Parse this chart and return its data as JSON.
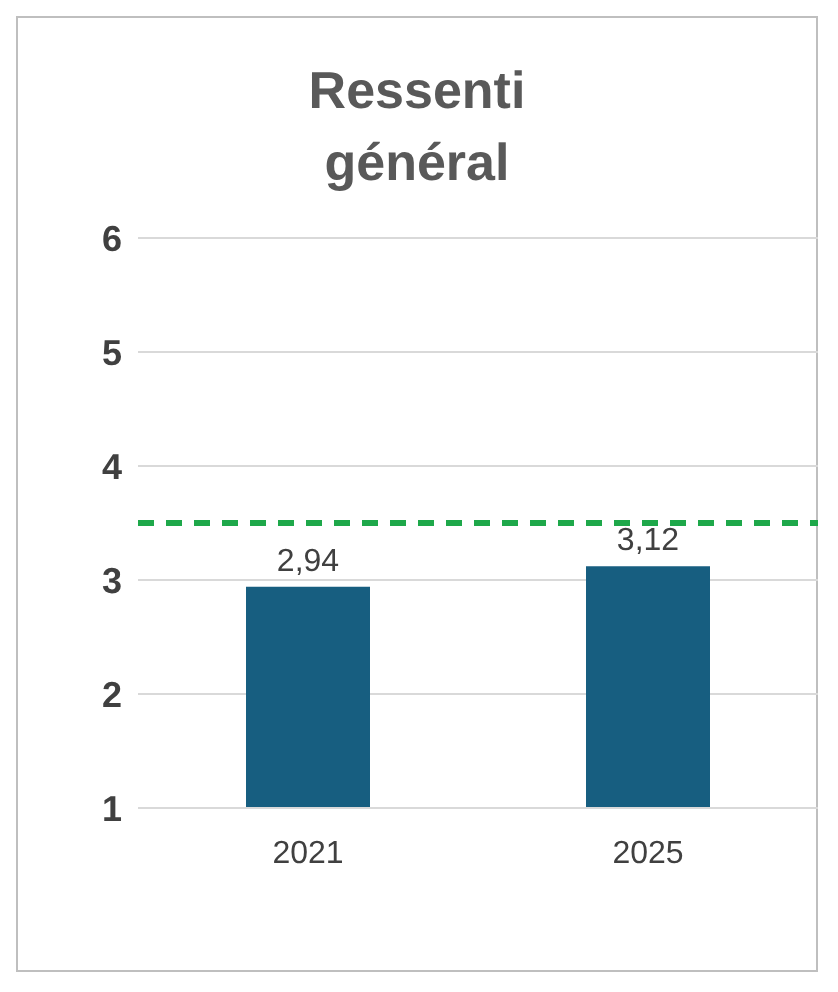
{
  "chart_data": {
    "type": "bar",
    "title": "Ressenti général",
    "categories": [
      "2021",
      "2025"
    ],
    "values": [
      2.94,
      3.12
    ],
    "color": "#175e80",
    "value_labels": [
      "2,94",
      "3,12"
    ],
    "ylim": [
      1,
      6
    ],
    "yticks": [
      1,
      2,
      3,
      4,
      5,
      6
    ],
    "grid": "y",
    "ref_lines": [
      {
        "axis": "y",
        "value": 3.5,
        "color": "#1ea84a",
        "line_style": "dashed"
      }
    ]
  }
}
